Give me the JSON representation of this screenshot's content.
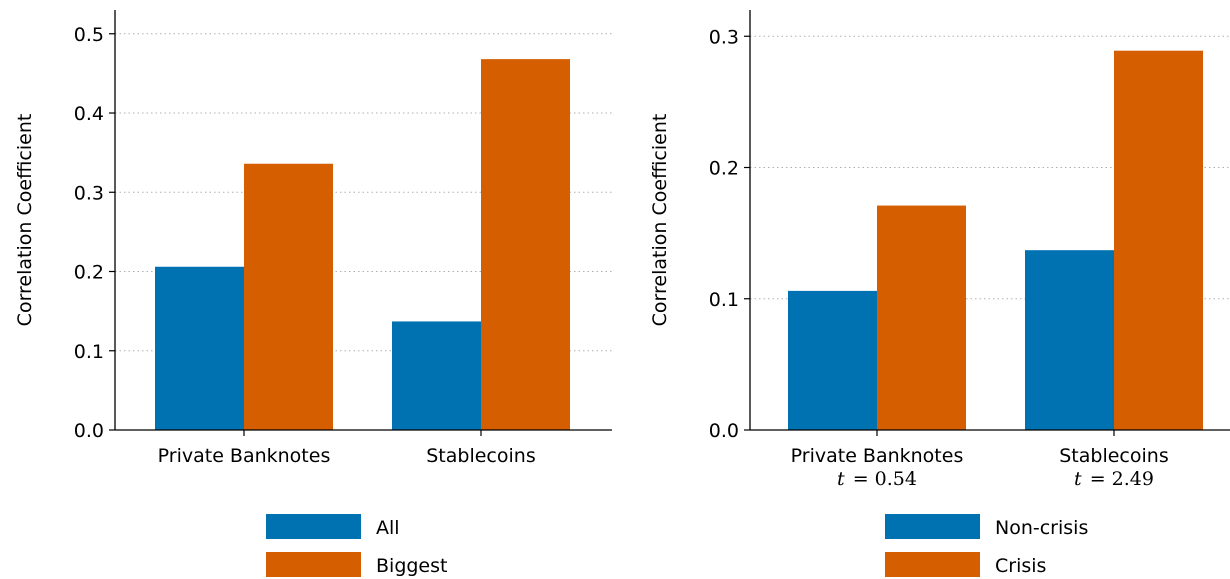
{
  "colors": {
    "series_1": "#0072B2",
    "series_2": "#D55E00",
    "grid": "#b0b0b0",
    "axis": "#000000"
  },
  "chart_data": [
    {
      "type": "bar",
      "title": "",
      "xlabel": "",
      "ylabel": "Correlation Coefficient",
      "ylim": [
        0.0,
        0.53
      ],
      "yticks": [
        "0.0",
        "0.1",
        "0.2",
        "0.3",
        "0.4",
        "0.5"
      ],
      "grid": "horizontal dotted",
      "legend_position": "bottom-center",
      "categories": [
        "Private Banknotes",
        "Stablecoins"
      ],
      "category_subtitles": [],
      "series": [
        {
          "name": "All",
          "values": [
            0.206,
            0.137
          ]
        },
        {
          "name": "Biggest",
          "values": [
            0.336,
            0.468
          ]
        }
      ]
    },
    {
      "type": "bar",
      "title": "",
      "xlabel": "",
      "ylabel": "Correlation Coefficient",
      "ylim": [
        0.0,
        0.32
      ],
      "yticks": [
        "0.0",
        "0.1",
        "0.2",
        "0.3"
      ],
      "grid": "horizontal dotted",
      "legend_position": "bottom-center",
      "categories": [
        "Private Banknotes",
        "Stablecoins"
      ],
      "category_subtitles": [
        {
          "var": "t",
          "eq": "= 0.54"
        },
        {
          "var": "t",
          "eq": "= 2.49"
        }
      ],
      "series": [
        {
          "name": "Non-crisis",
          "values": [
            0.106,
            0.137
          ]
        },
        {
          "name": "Crisis",
          "values": [
            0.171,
            0.289
          ]
        }
      ]
    }
  ]
}
